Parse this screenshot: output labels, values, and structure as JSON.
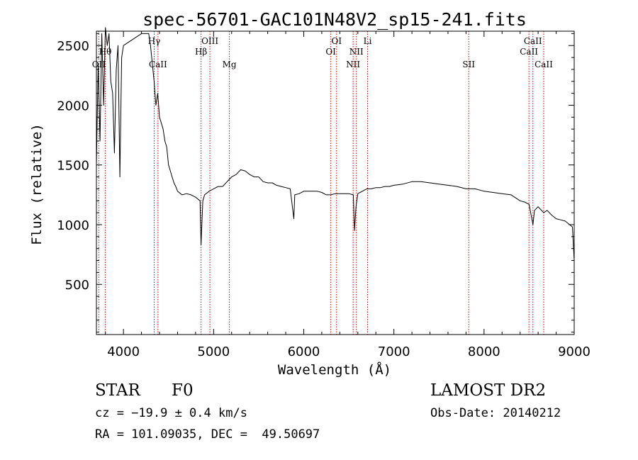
{
  "chart_data": {
    "type": "line",
    "title": "spec-56701-GAC101N48V2_sp15-241.fits",
    "xlabel": "Wavelength (Å)",
    "ylabel": "Flux (relative)",
    "xlim": [
      3700,
      9000
    ],
    "ylim": [
      80,
      2620
    ],
    "xticks": [
      4000,
      5000,
      6000,
      7000,
      8000,
      9000
    ],
    "yticks": [
      500,
      1000,
      1500,
      2000,
      2500
    ],
    "grid": false,
    "series": [
      {
        "x": [
          3700,
          3720,
          3740,
          3760,
          3780,
          3800,
          3820,
          3840,
          3860,
          3880,
          3900,
          3920,
          3940,
          3960,
          3980,
          4000,
          4100,
          4200,
          4280,
          4300,
          4340,
          4360,
          4380,
          4400,
          4420,
          4440,
          4460,
          4480,
          4500,
          4520,
          4540,
          4560,
          4580,
          4600,
          4650,
          4700,
          4750,
          4800,
          4850,
          4861,
          4880,
          4900,
          4950,
          5000,
          5050,
          5100,
          5150,
          5200,
          5250,
          5300,
          5350,
          5400,
          5450,
          5500,
          5550,
          5600,
          5650,
          5700,
          5750,
          5800,
          5850,
          5890,
          5900,
          5950,
          6000,
          6050,
          6100,
          6150,
          6200,
          6250,
          6300,
          6350,
          6400,
          6450,
          6500,
          6550,
          6563,
          6580,
          6600,
          6650,
          6700,
          6750,
          6800,
          6850,
          6900,
          6950,
          7000,
          7100,
          7200,
          7300,
          7400,
          7500,
          7600,
          7700,
          7800,
          7900,
          8000,
          8100,
          8200,
          8300,
          8400,
          8450,
          8500,
          8542,
          8560,
          8600,
          8662,
          8700,
          8750,
          8800,
          8850,
          8900,
          8950,
          8980,
          9000
        ],
        "y": [
          1500,
          2350,
          1700,
          2600,
          2000,
          2650,
          2500,
          2600,
          2200,
          2100,
          1600,
          2300,
          2500,
          1400,
          2400,
          2500,
          2550,
          2600,
          2600,
          2500,
          2200,
          2000,
          2100,
          1900,
          1850,
          1800,
          1700,
          1650,
          1500,
          1450,
          1400,
          1350,
          1320,
          1280,
          1250,
          1260,
          1250,
          1230,
          1200,
          830,
          1200,
          1250,
          1280,
          1300,
          1320,
          1320,
          1360,
          1400,
          1420,
          1460,
          1450,
          1420,
          1400,
          1400,
          1360,
          1350,
          1350,
          1330,
          1320,
          1310,
          1300,
          1050,
          1250,
          1260,
          1280,
          1280,
          1280,
          1280,
          1270,
          1250,
          1250,
          1260,
          1260,
          1260,
          1260,
          1250,
          950,
          1150,
          1260,
          1280,
          1300,
          1300,
          1310,
          1310,
          1320,
          1320,
          1330,
          1340,
          1360,
          1360,
          1350,
          1340,
          1330,
          1320,
          1300,
          1300,
          1280,
          1270,
          1260,
          1250,
          1200,
          1190,
          1170,
          1000,
          1120,
          1150,
          1100,
          1120,
          1080,
          1050,
          1040,
          1030,
          1000,
          980,
          700
        ]
      }
    ],
    "lines": [
      {
        "label": "OII",
        "x": 3727,
        "label_row": 3
      },
      {
        "label": "Hθ",
        "x": 3798,
        "label_row": 1
      },
      {
        "label": "Hγ",
        "x": 4341,
        "label_row": 0
      },
      {
        "label": "CaII",
        "x": 4383,
        "label_row": 3
      },
      {
        "label": "Hβ",
        "x": 4861,
        "label_row": 1
      },
      {
        "label": "OIII",
        "x": 4959,
        "label_row": 0
      },
      {
        "label": "Mg",
        "x": 5175,
        "label_row": 3
      },
      {
        "label": "OI",
        "x": 6300,
        "label_row": 1
      },
      {
        "label": "OI",
        "x": 6364,
        "label_row": 0
      },
      {
        "label": "NII",
        "x": 6548,
        "label_row": 2
      },
      {
        "label": "NII",
        "x": 6584,
        "label_row": 1
      },
      {
        "label": "Li",
        "x": 6708,
        "label_row": 0
      },
      {
        "label": "SII",
        "x": 7830,
        "label_row": 2
      },
      {
        "label": "CaII",
        "x": 8498,
        "label_row": 1
      },
      {
        "label": "CaII",
        "x": 8542,
        "label_row": 0
      },
      {
        "label": "CaII",
        "x": 8662,
        "label_row": 2
      }
    ]
  },
  "info": {
    "object_class": "STAR",
    "subclass": "F0",
    "survey": "LAMOST DR2",
    "redshift": "cz = −19.9 ± 0.4 km/s",
    "obs_date": "Obs-Date: 20140212",
    "coords": "RA = 101.09035, DEC =  49.50697"
  },
  "colors": {
    "line": "#000000",
    "marker_lines": "#cc0000",
    "axes": "#000000"
  }
}
